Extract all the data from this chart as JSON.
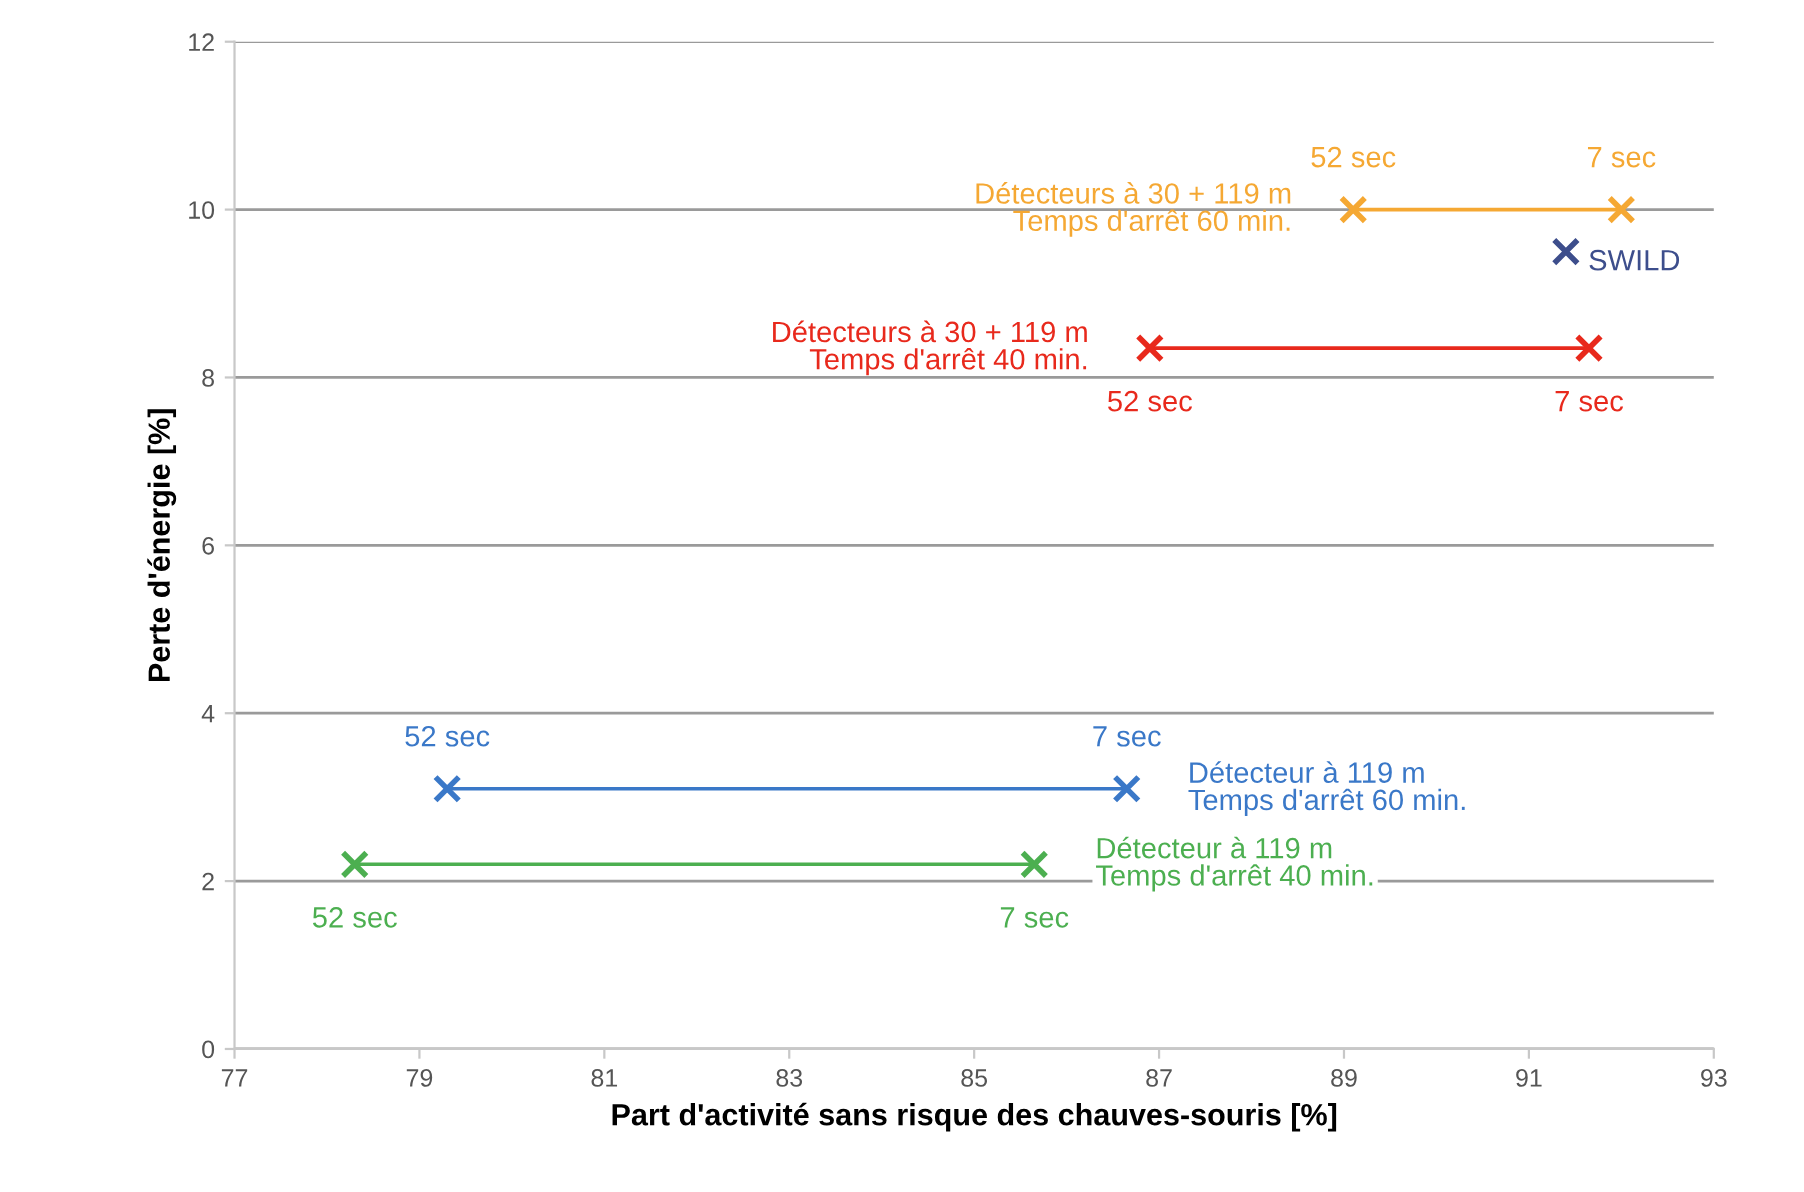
{
  "chart_data": {
    "type": "line",
    "xlabel": "Part d'activité sans risque des chauves-souris [%]",
    "ylabel": "Perte d'énergie [%]",
    "xlim": [
      77,
      93
    ],
    "xticks": [
      77,
      79,
      81,
      83,
      85,
      87,
      89,
      91,
      93
    ],
    "ylim": [
      0,
      12
    ],
    "yticks": [
      0,
      2,
      4,
      6,
      8,
      10,
      12
    ],
    "grid": "y",
    "legend": false,
    "marker": "cross",
    "series": [
      {
        "name": "Détecteurs à 30 + 119 m\nTemps d'arrêt 60 min.",
        "color": "#f5a833",
        "x": [
          89.1,
          92.0
        ],
        "values": [
          10,
          10
        ]
      },
      {
        "name": "SWILD",
        "color": "#3d4e8c",
        "type": "scatter",
        "x": [
          91.4
        ],
        "values": [
          9.5
        ]
      },
      {
        "name": "Détecteurs à 30 + 119 m\nTemps d'arrêt 40 min.",
        "color": "#e8291c",
        "x": [
          86.9,
          91.65
        ],
        "values": [
          8.35,
          8.35
        ]
      },
      {
        "name": "Détecteur à 119 m\nTemps d'arrêt 60 min.",
        "color": "#3a78c8",
        "x": [
          79.3,
          86.65
        ],
        "values": [
          3.1,
          3.1
        ]
      },
      {
        "name": "Détecteur à 119 m\nTemps d'arrêt 40 min.",
        "color": "#4caf50",
        "x": [
          78.3,
          85.65
        ],
        "values": [
          2.2,
          2.2
        ]
      }
    ],
    "annotations": [
      {
        "text": "52 sec",
        "x": 89.1,
        "y": 10
      },
      {
        "text": "7 sec",
        "x": 92.0,
        "y": 10
      },
      {
        "text": "52 sec",
        "x": 86.9,
        "y": 8.35
      },
      {
        "text": "7 sec",
        "x": 91.65,
        "y": 8.35
      },
      {
        "text": "52 sec",
        "x": 79.3,
        "y": 3.1
      },
      {
        "text": "7 sec",
        "x": 86.65,
        "y": 3.1
      },
      {
        "text": "52 sec",
        "x": 78.3,
        "y": 2.2
      },
      {
        "text": "7 sec",
        "x": 85.65,
        "y": 2.2
      }
    ]
  }
}
